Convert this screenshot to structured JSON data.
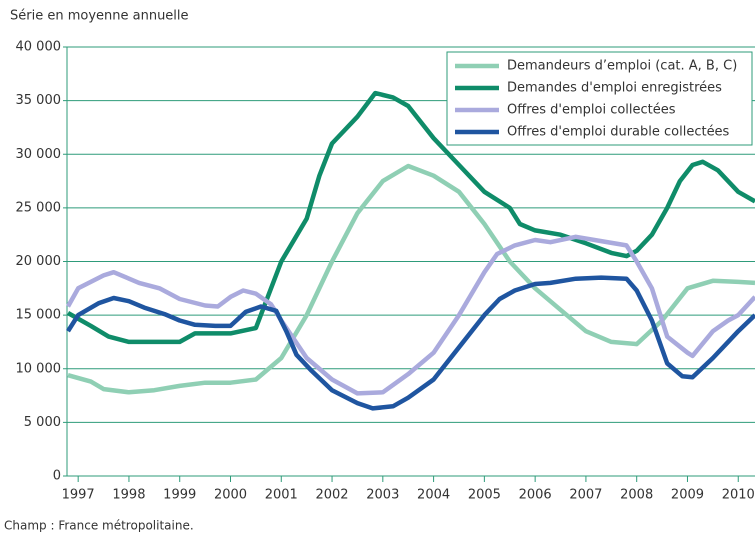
{
  "chart_data": {
    "type": "line",
    "subtitle": "Série en moyenne annuelle",
    "note": "Champ : France métropolitaine.",
    "xlim": [
      1996.78,
      2010.33
    ],
    "xticks": [
      1997,
      1998,
      1999,
      2000,
      2001,
      2002,
      2003,
      2004,
      2005,
      2006,
      2007,
      2008,
      2009,
      2010
    ],
    "ylim": [
      0,
      40000
    ],
    "yticks": [
      0,
      {
        "value": 5000,
        "label": "5 000"
      },
      {
        "value": 10000,
        "label": "10 000"
      },
      {
        "value": 15000,
        "label": "15 000"
      },
      {
        "value": 20000,
        "label": "20 000"
      },
      {
        "value": 25000,
        "label": "25 000"
      },
      {
        "value": 30000,
        "label": "30 000"
      },
      {
        "value": 35000,
        "label": "35 000"
      },
      {
        "value": 40000,
        "label": "40 000"
      }
    ],
    "grid": true,
    "legend": "top-right",
    "series": [
      {
        "name": "Demandeurs d’emploi (cat. A, B, C)",
        "color": "#8fcfb4",
        "x": [
          1996.8,
          1997.25,
          1997.5,
          1998,
          1998.5,
          1999,
          1999.5,
          2000,
          2000.5,
          2001,
          2001.5,
          2002,
          2002.5,
          2003,
          2003.5,
          2004,
          2004.5,
          2005,
          2005.5,
          2006,
          2006.5,
          2007,
          2007.5,
          2008,
          2008.5,
          2009,
          2009.5,
          2010,
          2010.33
        ],
        "values": [
          9400,
          8800,
          8100,
          7800,
          8000,
          8400,
          8700,
          8700,
          9000,
          11000,
          15000,
          20000,
          24500,
          27500,
          28900,
          28000,
          26500,
          23500,
          20000,
          17500,
          15500,
          13500,
          12500,
          12300,
          14500,
          17500,
          18200,
          18100,
          18000
        ]
      },
      {
        "name": "Demandes d'emploi enregistrées",
        "color": "#0f8c69",
        "x": [
          1996.8,
          1997.25,
          1997.6,
          1998,
          1998.5,
          1999,
          1999.3,
          2000,
          2000.5,
          2001,
          2001.5,
          2001.75,
          2002,
          2002.5,
          2002.85,
          2003.2,
          2003.5,
          2004,
          2004.5,
          2005,
          2005.5,
          2005.7,
          2006,
          2006.5,
          2007,
          2007.5,
          2007.8,
          2008,
          2008.3,
          2008.6,
          2008.85,
          2009.1,
          2009.3,
          2009.6,
          2010,
          2010.33
        ],
        "values": [
          15200,
          14000,
          13000,
          12500,
          12500,
          12500,
          13300,
          13300,
          13800,
          20000,
          24000,
          28000,
          31000,
          33500,
          35700,
          35300,
          34500,
          31500,
          29000,
          26500,
          25000,
          23500,
          22900,
          22500,
          21700,
          20800,
          20500,
          21000,
          22500,
          25000,
          27500,
          29000,
          29300,
          28500,
          26500,
          25600
        ]
      },
      {
        "name": "Offres d'emploi collectées",
        "color": "#aaaadd",
        "x": [
          1996.8,
          1997,
          1997.5,
          1997.7,
          1998.2,
          1998.6,
          1999,
          1999.5,
          1999.75,
          2000,
          2000.25,
          2000.5,
          2000.8,
          2001,
          2001.5,
          2002,
          2002.5,
          2003,
          2003.5,
          2004,
          2004.5,
          2005,
          2005.25,
          2005.6,
          2006,
          2006.3,
          2006.8,
          2007.3,
          2007.8,
          2008,
          2008.3,
          2008.6,
          2009,
          2009.1,
          2009.5,
          2009.8,
          2010,
          2010.33
        ],
        "values": [
          15800,
          17500,
          18700,
          19000,
          18000,
          17500,
          16500,
          15900,
          15800,
          16700,
          17300,
          17000,
          16000,
          14500,
          11000,
          9000,
          7700,
          7800,
          9500,
          11500,
          15000,
          19000,
          20700,
          21500,
          22000,
          21800,
          22300,
          21900,
          21500,
          20000,
          17500,
          13000,
          11500,
          11200,
          13500,
          14500,
          15000,
          16700
        ]
      },
      {
        "name": "Offres d'emploi durable collectées",
        "color": "#1f55a0",
        "x": [
          1996.8,
          1997,
          1997.4,
          1997.7,
          1998,
          1998.3,
          1998.7,
          1999,
          1999.3,
          1999.7,
          2000,
          2000.3,
          2000.6,
          2000.9,
          2001.1,
          2001.3,
          2001.6,
          2002,
          2002.5,
          2002.8,
          2003.2,
          2003.5,
          2004,
          2004.5,
          2005,
          2005.3,
          2005.6,
          2006,
          2006.3,
          2006.8,
          2007.3,
          2007.8,
          2008,
          2008.3,
          2008.6,
          2008.9,
          2009.1,
          2009.5,
          2009.8,
          2010,
          2010.33
        ],
        "values": [
          13500,
          15000,
          16100,
          16600,
          16300,
          15700,
          15100,
          14500,
          14100,
          14000,
          14000,
          15300,
          15800,
          15400,
          13500,
          11300,
          9800,
          8000,
          6800,
          6300,
          6500,
          7300,
          9000,
          12000,
          15000,
          16500,
          17300,
          17900,
          18000,
          18400,
          18500,
          18400,
          17300,
          14500,
          10500,
          9300,
          9200,
          11000,
          12500,
          13500,
          15000
        ]
      }
    ]
  }
}
